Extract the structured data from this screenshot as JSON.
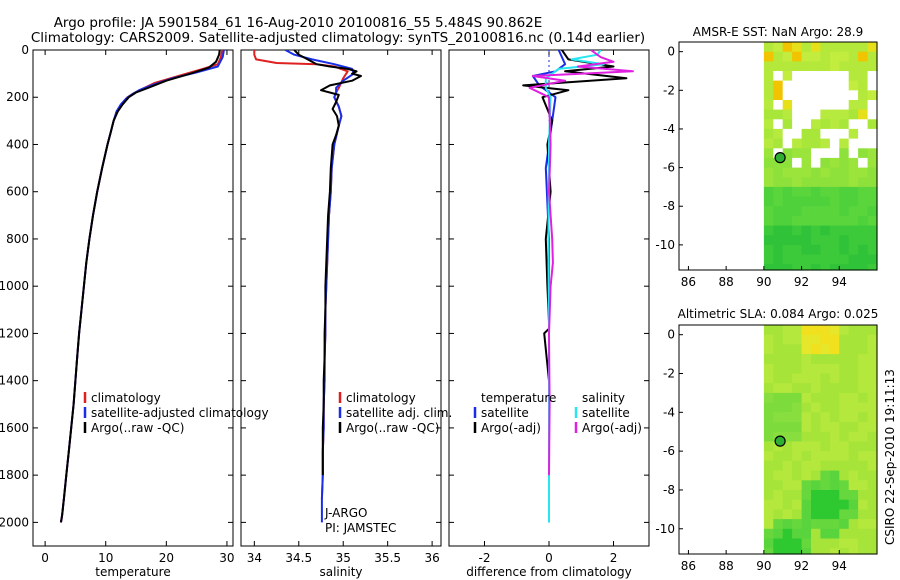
{
  "title_line1": "Argo profile: JA 5901584_61 16-Aug-2010 20100816_55 5.484S 90.862E",
  "title_line2": "Climatology: CARS2009. Satellite-adjusted climatology: synTS_20100816.nc (0.14d earlier)",
  "credit": "CSIRO 22-Sep-2010 19:11:13",
  "colors": {
    "climatology": "#e02020",
    "satellite": "#1a2ee8",
    "argo": "#000000",
    "satellite_diff": "#28e6f0",
    "argo_adj": "#e020e0"
  },
  "chart_data": [
    {
      "type": "line",
      "name": "temperature-panel",
      "xlabel": "temperature",
      "ylabel": "depth",
      "xlim": [
        -2,
        31
      ],
      "ylim": [
        2100,
        0
      ],
      "xticks": [
        0,
        10,
        20,
        30
      ],
      "yticks": [
        0,
        200,
        400,
        600,
        800,
        1000,
        1200,
        1400,
        1600,
        1800,
        2000
      ],
      "legend": [
        "climatology",
        "satellite-adjusted climatology",
        "Argo(..raw -QC)"
      ],
      "series": [
        {
          "name": "climatology",
          "color": "#e02020",
          "x": [
            29.2,
            29.0,
            28.5,
            26,
            22,
            18,
            16,
            14.5,
            13.6,
            12.6,
            11.8,
            11.3,
            10.8,
            10.3,
            9.4,
            8.6,
            7.9,
            7.3,
            6.8,
            6.4,
            6.0,
            5.6,
            5.3,
            5.0,
            4.7,
            4.5,
            4.3,
            4.1,
            3.9,
            3.7,
            3.5,
            3.3,
            3.1,
            3.0,
            2.9,
            2.8,
            2.7,
            2.6
          ],
          "y": [
            0,
            30,
            60,
            80,
            110,
            140,
            165,
            185,
            200,
            230,
            260,
            300,
            350,
            400,
            500,
            600,
            700,
            800,
            900,
            1000,
            1100,
            1200,
            1300,
            1400,
            1500,
            1550,
            1600,
            1650,
            1700,
            1750,
            1800,
            1850,
            1900,
            1920,
            1950,
            1970,
            1990,
            2000
          ]
        },
        {
          "name": "satellite-adjusted climatology",
          "color": "#1a2ee8",
          "x": [
            29.5,
            29.3,
            28.5,
            25,
            21,
            17.5,
            15.5,
            14.2,
            13.4,
            12.5,
            11.8,
            11.3,
            10.8,
            10.3,
            9.4,
            8.6,
            7.9,
            7.3,
            6.8,
            6.4,
            6.0,
            5.6,
            5.3,
            5.0,
            4.7,
            4.3,
            3.9,
            3.5,
            3.1,
            2.8,
            2.6
          ],
          "y": [
            0,
            30,
            70,
            95,
            120,
            150,
            170,
            190,
            205,
            230,
            260,
            300,
            350,
            400,
            500,
            600,
            700,
            800,
            900,
            1000,
            1100,
            1200,
            1300,
            1400,
            1500,
            1600,
            1700,
            1800,
            1900,
            1970,
            2000
          ]
        },
        {
          "name": "Argo(..raw -QC)",
          "color": "#000000",
          "x": [
            28.8,
            28.7,
            28.2,
            27,
            24,
            20,
            17,
            15,
            13.8,
            12.8,
            12.0,
            11.3,
            10.8,
            10.3,
            9.4,
            8.6,
            7.9,
            7.3,
            6.8,
            6.4,
            6.0,
            5.6,
            5.3,
            5.0,
            4.7,
            4.3,
            3.9,
            3.5,
            3.1,
            2.8,
            2.6
          ],
          "y": [
            0,
            20,
            50,
            75,
            100,
            130,
            160,
            180,
            200,
            230,
            260,
            300,
            350,
            400,
            500,
            600,
            700,
            800,
            900,
            1000,
            1100,
            1200,
            1300,
            1400,
            1500,
            1600,
            1700,
            1800,
            1900,
            1970,
            2000
          ]
        }
      ]
    },
    {
      "type": "line",
      "name": "salinity-panel",
      "xlabel": "salinity",
      "xlim": [
        33.85,
        36.1
      ],
      "ylim": [
        2100,
        0
      ],
      "xticks": [
        34,
        34.5,
        35,
        35.5,
        36
      ],
      "xticklabels": [
        "34",
        "34.5",
        "35",
        "35.5",
        "36"
      ],
      "yticks": [
        0,
        200,
        400,
        600,
        800,
        1000,
        1200,
        1400,
        1600,
        1800,
        2000
      ],
      "legend": [
        "climatology",
        "satellite adj. clim.",
        "Argo(..raw -QC)"
      ],
      "annotations": [
        "J-ARGO",
        "PI: JAMSTEC"
      ],
      "series": [
        {
          "name": "climatology",
          "color": "#e02020",
          "x": [
            34.0,
            34.0,
            34.02,
            34.25,
            34.7,
            34.9,
            35.05,
            35.0,
            34.95,
            34.92,
            34.9,
            34.95,
            34.98,
            34.95,
            34.9,
            34.87,
            34.86,
            34.84,
            34.83,
            34.82,
            34.81,
            34.8,
            34.8,
            34.79,
            34.79,
            34.78,
            34.78,
            34.77,
            34.77,
            34.76
          ],
          "y": [
            0,
            20,
            40,
            55,
            60,
            70,
            90,
            120,
            160,
            180,
            200,
            240,
            280,
            320,
            400,
            500,
            600,
            700,
            800,
            900,
            1000,
            1100,
            1200,
            1300,
            1400,
            1500,
            1600,
            1700,
            1800,
            1900
          ]
        },
        {
          "name": "satellite adj. clim.",
          "color": "#1a2ee8",
          "x": [
            34.35,
            34.45,
            34.65,
            34.9,
            35.1,
            35.12,
            35.0,
            34.92,
            34.92,
            34.9,
            34.95,
            34.98,
            34.95,
            34.9,
            34.87,
            34.86,
            34.84,
            34.83,
            34.82,
            34.81,
            34.8,
            34.8,
            34.79,
            34.79,
            34.78,
            34.78,
            34.77,
            34.77,
            34.76,
            34.76
          ],
          "y": [
            0,
            20,
            40,
            60,
            80,
            100,
            130,
            160,
            180,
            200,
            240,
            280,
            320,
            400,
            500,
            600,
            700,
            800,
            900,
            1000,
            1100,
            1200,
            1300,
            1400,
            1500,
            1600,
            1700,
            1800,
            1900,
            2000
          ]
        },
        {
          "name": "Argo(..raw -QC)",
          "color": "#000000",
          "x": [
            34.45,
            34.5,
            34.6,
            34.7,
            34.85,
            35.05,
            35.15,
            35.1,
            35.2,
            35.1,
            34.85,
            34.75,
            34.95,
            34.92,
            34.88,
            34.93,
            34.95,
            34.92,
            34.88,
            34.86,
            34.85,
            34.83,
            34.82,
            34.81,
            34.8,
            34.8,
            34.79,
            34.79,
            34.78,
            34.78,
            34.77,
            34.77,
            34.77
          ],
          "y": [
            0,
            20,
            40,
            60,
            70,
            80,
            90,
            100,
            110,
            130,
            150,
            170,
            190,
            220,
            250,
            280,
            320,
            360,
            400,
            500,
            600,
            700,
            800,
            900,
            1000,
            1100,
            1200,
            1300,
            1400,
            1500,
            1600,
            1700,
            1800
          ]
        }
      ]
    },
    {
      "type": "line",
      "name": "difference-panel",
      "xlabel": "difference from climatology",
      "xlim": [
        -3.1,
        3.1
      ],
      "ylim": [
        2100,
        0
      ],
      "xticks": [
        -2,
        0,
        2
      ],
      "yticks": [
        0,
        200,
        400,
        600,
        800,
        1000,
        1200,
        1400,
        1600,
        1800,
        2000
      ],
      "legend_titles": [
        "temperature",
        "salinity"
      ],
      "legend_temperature": [
        "satellite",
        "Argo(-adj)"
      ],
      "legend_salinity": [
        "satellite",
        "Argo(-adj)"
      ],
      "series": [
        {
          "name": "temperature satellite",
          "color": "#1a2ee8",
          "x": [
            0.3,
            0.5,
            0.2,
            -0.5,
            -0.3,
            0.2,
            0.1,
            -0.1,
            0.0,
            0.0,
            0.0,
            0.0
          ],
          "y": [
            0,
            60,
            90,
            110,
            150,
            200,
            300,
            500,
            800,
            1200,
            1600,
            2000
          ]
        },
        {
          "name": "temperature Argo(-adj)",
          "color": "#000000",
          "x": [
            0.4,
            0.6,
            2.0,
            0.5,
            2.4,
            -0.8,
            0.6,
            -0.2,
            0.1,
            -0.05,
            0.05,
            -0.1,
            -0.05,
            0.0,
            0.0,
            -0.15,
            0.0,
            0.0
          ],
          "y": [
            0,
            40,
            70,
            90,
            120,
            150,
            170,
            200,
            300,
            400,
            600,
            800,
            1000,
            1150,
            1180,
            1200,
            1400,
            1800
          ]
        },
        {
          "name": "salinity satellite",
          "color": "#28e6f0",
          "x": [
            1.6,
            1.5,
            0.7,
            1.7,
            0.3,
            -0.1,
            -0.1,
            0.05,
            0.0,
            -0.02,
            0.0,
            0.0,
            0.0
          ],
          "y": [
            0,
            20,
            40,
            60,
            80,
            120,
            160,
            200,
            400,
            800,
            1200,
            1600,
            2000
          ]
        },
        {
          "name": "salinity Argo(-adj)",
          "color": "#e020e0",
          "x": [
            1.3,
            1.6,
            2.0,
            0.9,
            2.6,
            -0.5,
            0.5,
            -0.6,
            0.0,
            0.05,
            0.0,
            0.1,
            0.12,
            0.05,
            0.0,
            0.02,
            0.0
          ],
          "y": [
            0,
            30,
            50,
            70,
            90,
            110,
            130,
            160,
            200,
            400,
            600,
            800,
            900,
            1000,
            1200,
            1500,
            1800
          ]
        }
      ]
    },
    {
      "type": "heatmap",
      "name": "amsr-sst-map",
      "title": "AMSR-E SST: NaN Argo: 28.9",
      "xlim": [
        85.5,
        96
      ],
      "ylim": [
        -11.3,
        0.5
      ],
      "xticks": [
        86,
        88,
        90,
        92,
        94
      ],
      "yticks": [
        0,
        -2,
        -4,
        -6,
        -8,
        -10
      ],
      "argo_position": {
        "lon": 90.862,
        "lat": -5.484
      }
    },
    {
      "type": "heatmap",
      "name": "altimetric-sla-map",
      "title": "Altimetric SLA: 0.084 Argo: 0.025",
      "xlim": [
        85.5,
        96
      ],
      "ylim": [
        -11.3,
        0.5
      ],
      "xticks": [
        86,
        88,
        90,
        92,
        94
      ],
      "yticks": [
        0,
        -2,
        -4,
        -6,
        -8,
        -10
      ],
      "argo_position": {
        "lon": 90.862,
        "lat": -5.484
      }
    }
  ]
}
